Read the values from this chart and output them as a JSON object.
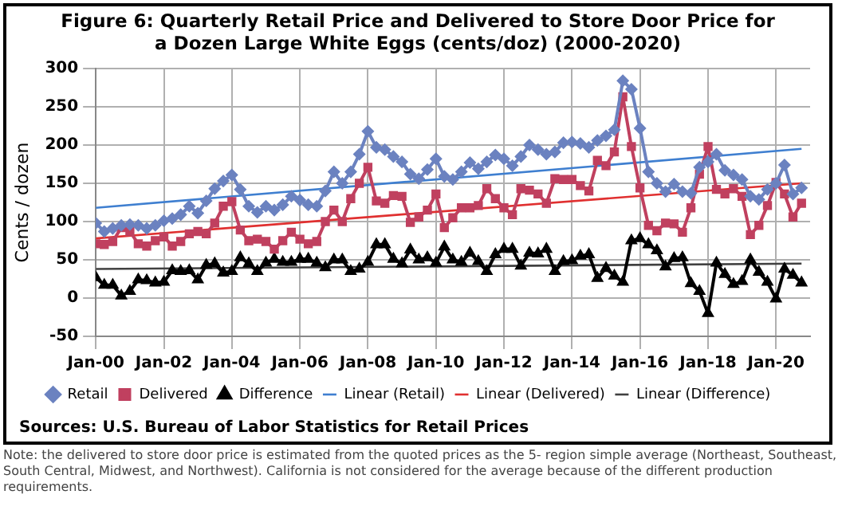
{
  "chart_data": {
    "type": "line",
    "title": "Figure 6: Quarterly Retail Price and Delivered to Store Door Price for a Dozen Large White Eggs (cents/doz) (2000-2020)",
    "ylabel": "Cents / dozen",
    "x": [
      "2000-01",
      "2000-04",
      "2000-07",
      "2000-10",
      "2001-01",
      "2001-04",
      "2001-07",
      "2001-10",
      "2002-01",
      "2002-04",
      "2002-07",
      "2002-10",
      "2003-01",
      "2003-04",
      "2003-07",
      "2003-10",
      "2004-01",
      "2004-04",
      "2004-07",
      "2004-10",
      "2005-01",
      "2005-04",
      "2005-07",
      "2005-10",
      "2006-01",
      "2006-04",
      "2006-07",
      "2006-10",
      "2007-01",
      "2007-04",
      "2007-07",
      "2007-10",
      "2008-01",
      "2008-04",
      "2008-07",
      "2008-10",
      "2009-01",
      "2009-04",
      "2009-07",
      "2009-10",
      "2010-01",
      "2010-04",
      "2010-07",
      "2010-10",
      "2011-01",
      "2011-04",
      "2011-07",
      "2011-10",
      "2012-01",
      "2012-04",
      "2012-07",
      "2012-10",
      "2013-01",
      "2013-04",
      "2013-07",
      "2013-10",
      "2014-01",
      "2014-04",
      "2014-07",
      "2014-10",
      "2015-01",
      "2015-04",
      "2015-07",
      "2015-10",
      "2016-01",
      "2016-04",
      "2016-07",
      "2016-10",
      "2017-01",
      "2017-04",
      "2017-07",
      "2017-10",
      "2018-01",
      "2018-04",
      "2018-07",
      "2018-10",
      "2019-01",
      "2019-04",
      "2019-07",
      "2019-10",
      "2020-01",
      "2020-04",
      "2020-07",
      "2020-10"
    ],
    "series": [
      {
        "name": "Retail",
        "color": "#6b82c0",
        "marker": "diamond",
        "values": [
          98,
          87,
          91,
          95,
          96,
          95,
          91,
          95,
          101,
          104,
          109,
          120,
          111,
          127,
          143,
          153,
          161,
          142,
          120,
          112,
          120,
          115,
          122,
          133,
          128,
          122,
          120,
          140,
          165,
          150,
          165,
          188,
          218,
          197,
          194,
          185,
          178,
          162,
          156,
          168,
          182,
          159,
          155,
          165,
          177,
          169,
          178,
          187,
          182,
          173,
          185,
          200,
          194,
          188,
          191,
          203,
          204,
          202,
          197,
          206,
          212,
          220,
          284,
          273,
          222,
          165,
          150,
          139,
          149,
          139,
          137,
          171,
          178,
          188,
          167,
          161,
          155,
          133,
          129,
          142,
          150,
          174,
          136,
          144
        ]
      },
      {
        "name": "Delivered",
        "color": "#c0405f",
        "marker": "square",
        "values": [
          71,
          70,
          74,
          92,
          87,
          71,
          68,
          75,
          80,
          68,
          74,
          84,
          87,
          84,
          98,
          120,
          126,
          89,
          75,
          77,
          74,
          64,
          75,
          86,
          77,
          71,
          74,
          100,
          115,
          100,
          130,
          150,
          171,
          127,
          124,
          134,
          133,
          99,
          106,
          115,
          136,
          92,
          105,
          118,
          118,
          121,
          143,
          130,
          118,
          109,
          143,
          141,
          136,
          124,
          156,
          155,
          155,
          147,
          140,
          180,
          173,
          191,
          263,
          198,
          144,
          95,
          88,
          98,
          97,
          86,
          118,
          162,
          198,
          142,
          136,
          143,
          133,
          83,
          95,
          121,
          151,
          136,
          106,
          124
        ]
      },
      {
        "name": "Difference",
        "color": "#000000",
        "marker": "triangle",
        "values": [
          27,
          17,
          17,
          3,
          9,
          24,
          23,
          20,
          21,
          36,
          35,
          36,
          24,
          43,
          45,
          33,
          35,
          53,
          45,
          35,
          46,
          51,
          47,
          47,
          51,
          51,
          46,
          40,
          50,
          50,
          35,
          38,
          47,
          70,
          70,
          51,
          45,
          63,
          50,
          53,
          46,
          67,
          50,
          47,
          59,
          48,
          35,
          57,
          64,
          64,
          42,
          59,
          58,
          64,
          35,
          48,
          49,
          55,
          57,
          26,
          39,
          29,
          21,
          75,
          78,
          70,
          62,
          41,
          52,
          53,
          19,
          9,
          -20,
          46,
          31,
          18,
          22,
          50,
          34,
          21,
          -1,
          38,
          30,
          20
        ]
      },
      {
        "name": "Linear (Retail)",
        "color": "#3f7fd0",
        "marker": "none",
        "x": [
          "2000-01",
          "2020-10"
        ],
        "values": [
          118,
          195
        ]
      },
      {
        "name": "Linear (Delivered)",
        "color": "#e03030",
        "marker": "none",
        "x": [
          "2000-01",
          "2020-10"
        ],
        "values": [
          78,
          150
        ]
      },
      {
        "name": "Linear (Difference)",
        "color": "#404040",
        "marker": "none",
        "x": [
          "2000-01",
          "2020-10"
        ],
        "values": [
          38,
          45
        ]
      }
    ],
    "xlim": [
      "2000-01",
      "2021-01"
    ],
    "xticks": [
      {
        "value": "2000-01",
        "label": "Jan-00"
      },
      {
        "value": "2002-01",
        "label": "Jan-02"
      },
      {
        "value": "2004-01",
        "label": "Jan-04"
      },
      {
        "value": "2006-01",
        "label": "Jan-06"
      },
      {
        "value": "2008-01",
        "label": "Jan-08"
      },
      {
        "value": "2010-01",
        "label": "Jan-10"
      },
      {
        "value": "2012-01",
        "label": "Jan-12"
      },
      {
        "value": "2014-01",
        "label": "Jan-14"
      },
      {
        "value": "2016-01",
        "label": "Jan-16"
      },
      {
        "value": "2018-01",
        "label": "Jan-18"
      },
      {
        "value": "2020-01",
        "label": "Jan-20"
      }
    ],
    "ylim": [
      -50,
      300
    ],
    "yticks": [
      -50,
      0,
      50,
      100,
      150,
      200,
      250,
      300
    ],
    "grid": true,
    "legend": "bottom",
    "line_style": "solid",
    "annotations": [
      "Sources: U.S. Bureau of Labor Statistics for Retail Prices",
      "Note: the delivered to store door price is estimated from the quoted prices as the 5- region simple average (Northeast, Southeast, South Central, Midwest, and Northwest). California is not considered for the average because of the different production requirements."
    ]
  }
}
